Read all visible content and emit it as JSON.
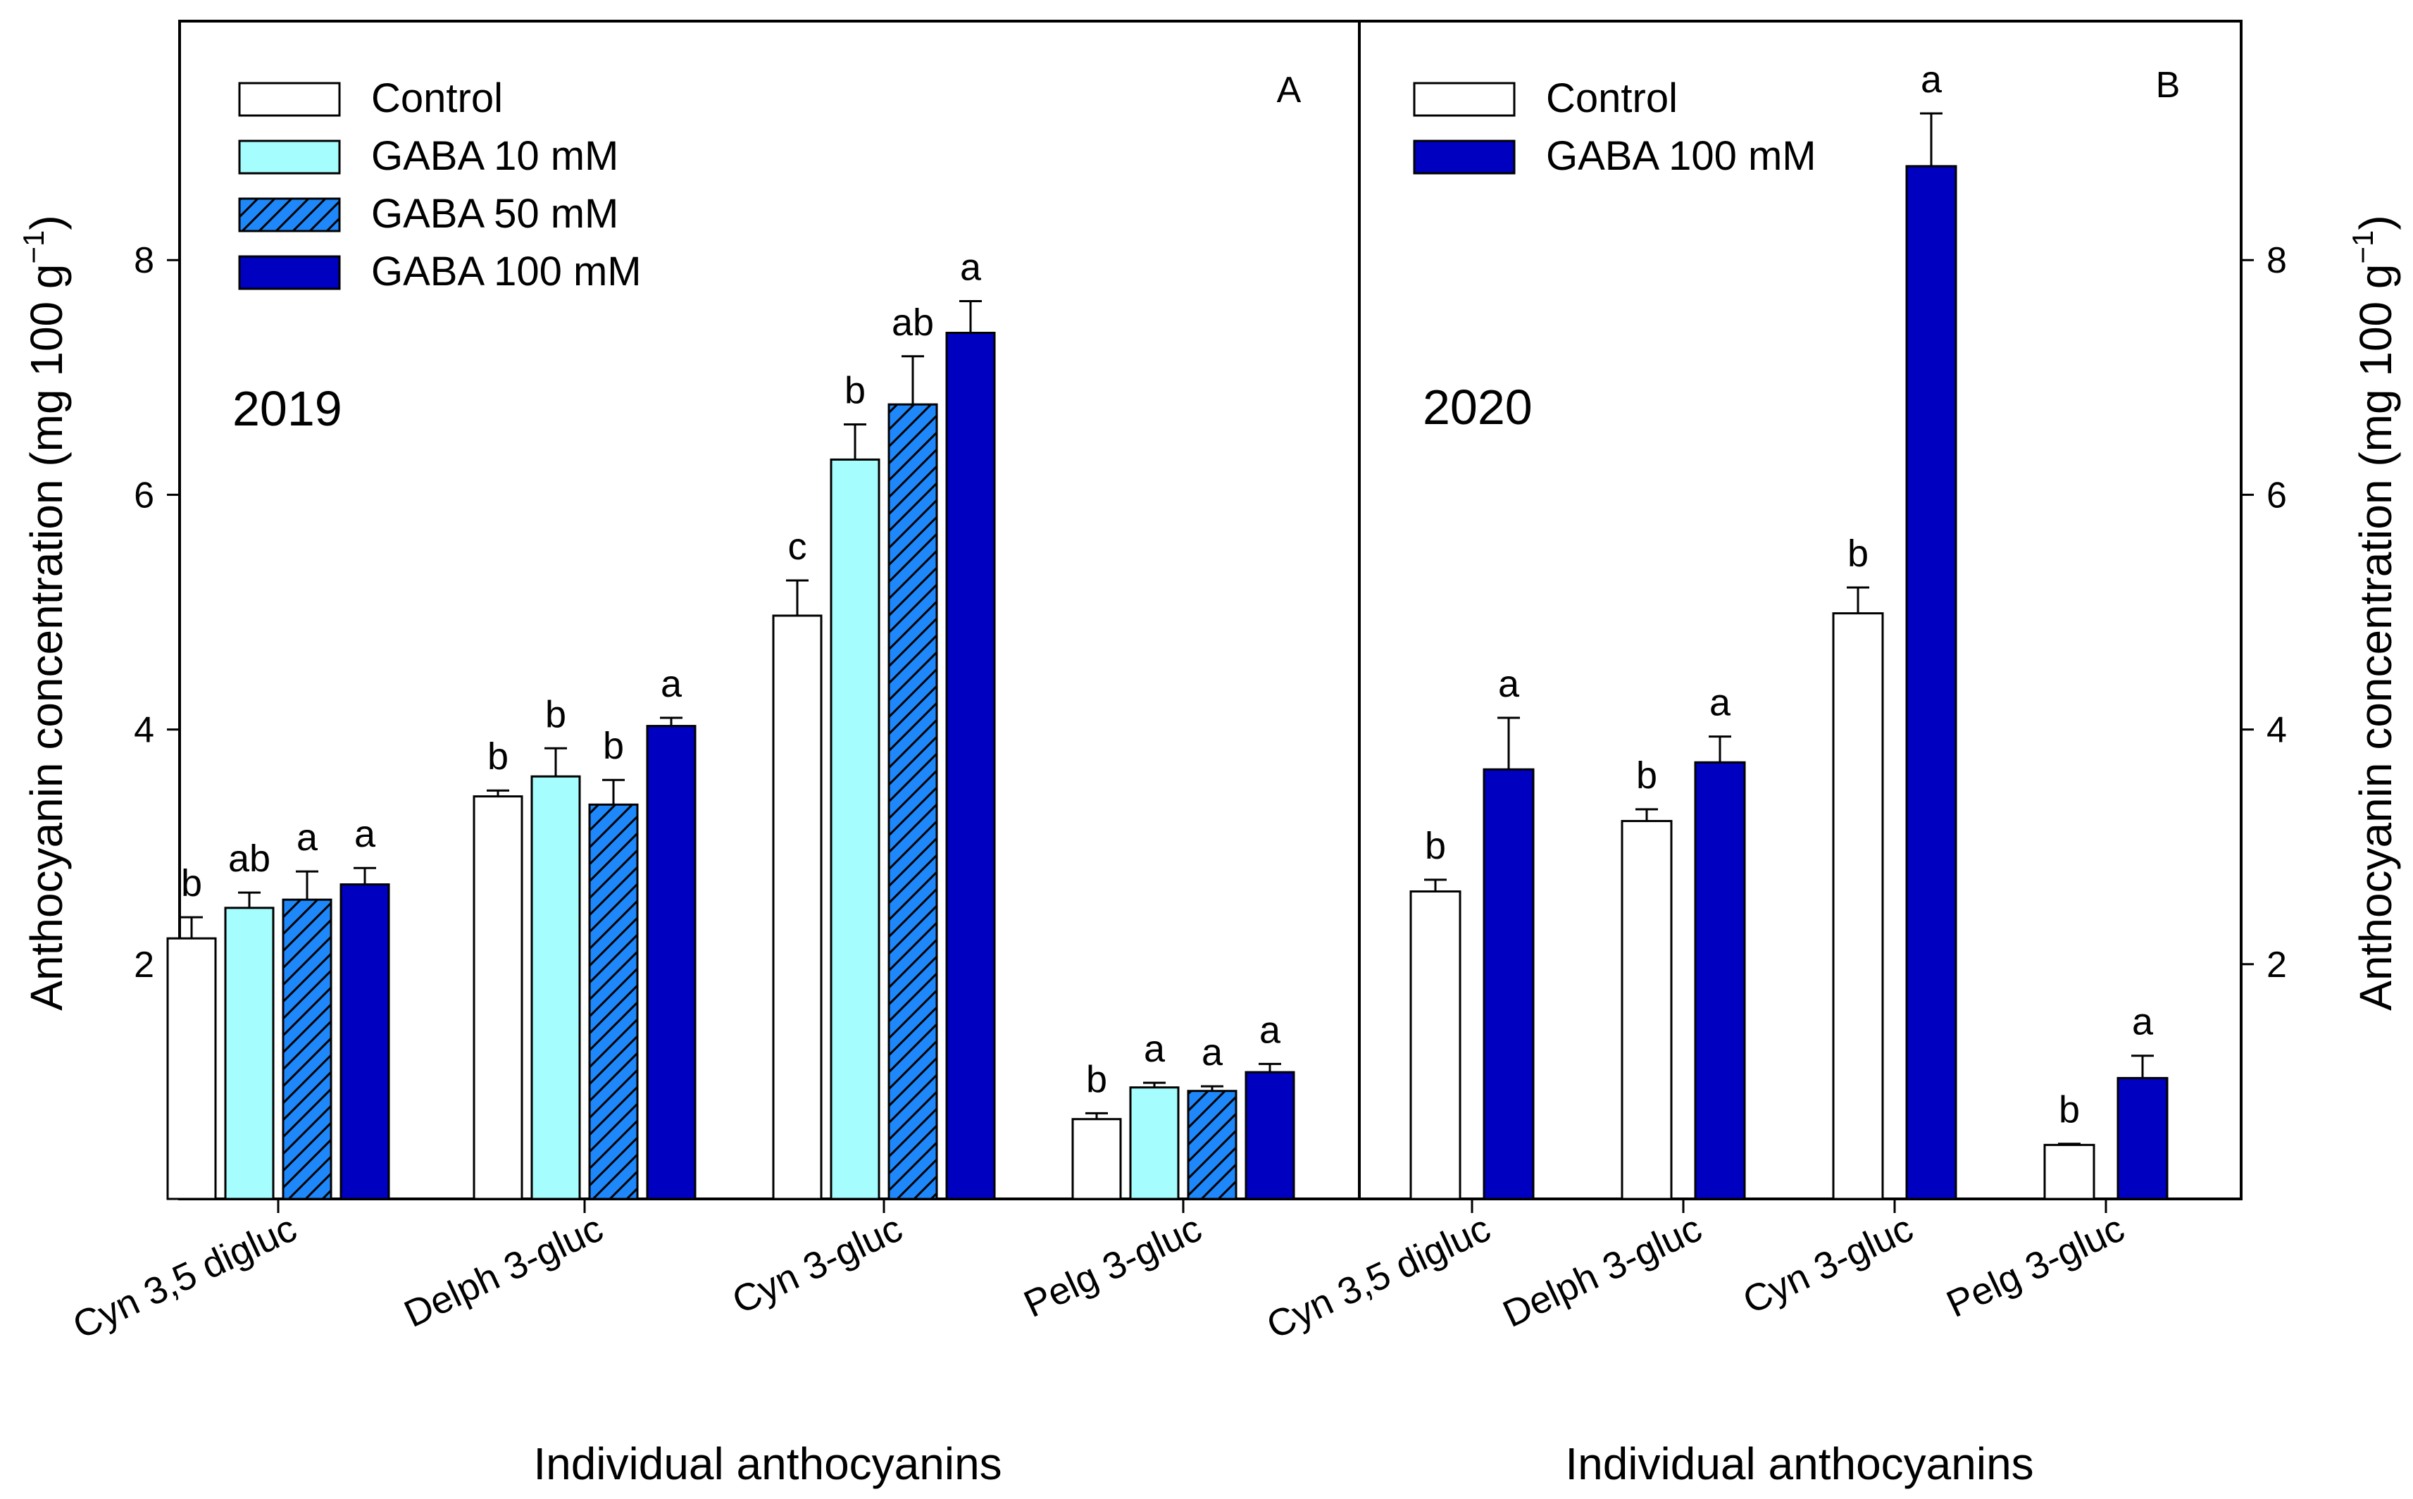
{
  "colors": {
    "control": "#ffffff",
    "gaba10": "#a6fdfd",
    "gaba50": "#1e88fa",
    "gaba100": "#0000c0",
    "axis": "#000000"
  },
  "chart_data": [
    {
      "type": "bar",
      "panel_label": "A",
      "year": "2019",
      "xlabel": "Individual anthocyanins",
      "ylabel": "Anthocyanin concentration (mg 100 g",
      "ylabel_sup": "−1",
      "ylabel_close": ")",
      "ylim": [
        0,
        10
      ],
      "yticks": [
        "2",
        "4",
        "6",
        "8"
      ],
      "legend_position": "top-left",
      "categories": [
        "Cyn 3,5 digluc",
        "Delph 3-gluc",
        "Cyn 3-gluc",
        "Pelg 3-gluc"
      ],
      "series": [
        {
          "name": "Control",
          "color": "#ffffff",
          "hatch": false,
          "values": [
            2.22,
            3.43,
            4.97,
            0.68
          ],
          "errors": [
            0.18,
            0.05,
            0.3,
            0.05
          ],
          "letters": [
            "b",
            "b",
            "c",
            "b"
          ]
        },
        {
          "name": "GABA 10 mM",
          "color": "#a6fdfd",
          "hatch": false,
          "values": [
            2.48,
            3.6,
            6.3,
            0.95
          ],
          "errors": [
            0.13,
            0.24,
            0.3,
            0.04
          ],
          "letters": [
            "ab",
            "b",
            "b",
            "a"
          ]
        },
        {
          "name": "GABA 50 mM",
          "color": "#1e88fa",
          "hatch": true,
          "values": [
            2.55,
            3.36,
            6.77,
            0.92
          ],
          "errors": [
            0.24,
            0.21,
            0.41,
            0.04
          ],
          "letters": [
            "a",
            "b",
            "ab",
            "a"
          ]
        },
        {
          "name": "GABA 100 mM",
          "color": "#0000c0",
          "hatch": false,
          "values": [
            2.68,
            4.03,
            7.38,
            1.08
          ],
          "errors": [
            0.14,
            0.07,
            0.27,
            0.07
          ],
          "letters": [
            "a",
            "a",
            "a",
            "a"
          ]
        }
      ]
    },
    {
      "type": "bar",
      "panel_label": "B",
      "year": "2020",
      "xlabel": "Individual anthocyanins",
      "ylabel": "Anthocyanin concentration (mg 100 g",
      "ylabel_sup": "−1",
      "ylabel_close": ")",
      "ylim": [
        0,
        10
      ],
      "yticks": [
        "2",
        "4",
        "6",
        "8"
      ],
      "legend_position": "top-left",
      "categories": [
        "Cyn 3,5 digluc",
        "Delph 3-gluc",
        "Cyn 3-gluc",
        "Pelg 3-gluc"
      ],
      "series": [
        {
          "name": "Control",
          "color": "#ffffff",
          "hatch": false,
          "values": [
            2.62,
            3.22,
            4.99,
            0.46
          ],
          "errors": [
            0.1,
            0.1,
            0.22,
            0.01
          ],
          "letters": [
            "b",
            "b",
            "b",
            "b"
          ]
        },
        {
          "name": "GABA 100 mM",
          "color": "#0000c0",
          "hatch": false,
          "values": [
            3.66,
            3.72,
            8.8,
            1.03
          ],
          "errors": [
            0.44,
            0.22,
            0.45,
            0.19
          ],
          "letters": [
            "a",
            "a",
            "a",
            "a"
          ]
        }
      ]
    }
  ]
}
